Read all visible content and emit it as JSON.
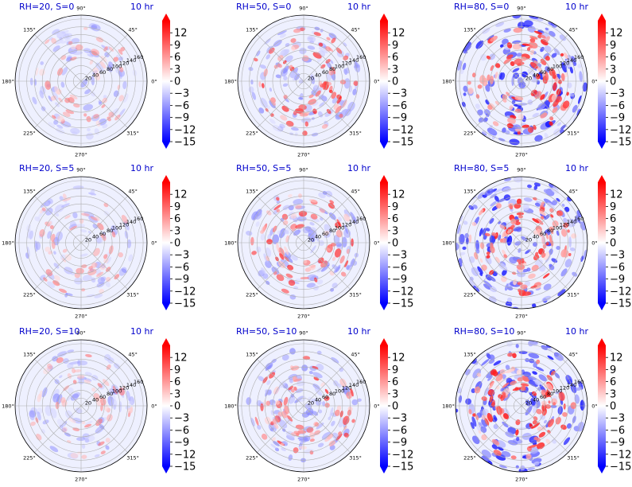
{
  "chart_data": {
    "type": "heatmap",
    "projection": "polar",
    "layout": "3x3",
    "colormap": "bwr",
    "colorbar": {
      "min": -15,
      "max": 15,
      "ticks": [
        12,
        9,
        6,
        3,
        0,
        -3,
        -6,
        -9,
        -12,
        -15
      ],
      "extend": "both"
    },
    "theta_ticks": [
      "0°",
      "45°",
      "90°",
      "135°",
      "180°",
      "225°",
      "270°",
      "315°"
    ],
    "r_ticks": [
      "20",
      "40",
      "60",
      "80",
      "100",
      "120",
      "140",
      "160"
    ],
    "r_max": 170,
    "time_label": "10 hr",
    "panels": [
      {
        "title": "RH=20, S=0",
        "rh": 20,
        "s": 0,
        "intensity": 0.3
      },
      {
        "title": "RH=50, S=0",
        "rh": 50,
        "s": 0,
        "intensity": 0.55
      },
      {
        "title": "RH=80, S=0",
        "rh": 80,
        "s": 0,
        "intensity": 0.95
      },
      {
        "title": "RH=20, S=5",
        "rh": 20,
        "s": 5,
        "intensity": 0.3
      },
      {
        "title": "RH=50, S=5",
        "rh": 50,
        "s": 5,
        "intensity": 0.55
      },
      {
        "title": "RH=80, S=5",
        "rh": 80,
        "s": 5,
        "intensity": 0.95
      },
      {
        "title": "RH=20, S=10",
        "rh": 20,
        "s": 10,
        "intensity": 0.3
      },
      {
        "title": "RH=50, S=10",
        "rh": 50,
        "s": 10,
        "intensity": 0.55
      },
      {
        "title": "RH=80, S=10",
        "rh": 80,
        "s": 10,
        "intensity": 0.95
      }
    ]
  }
}
